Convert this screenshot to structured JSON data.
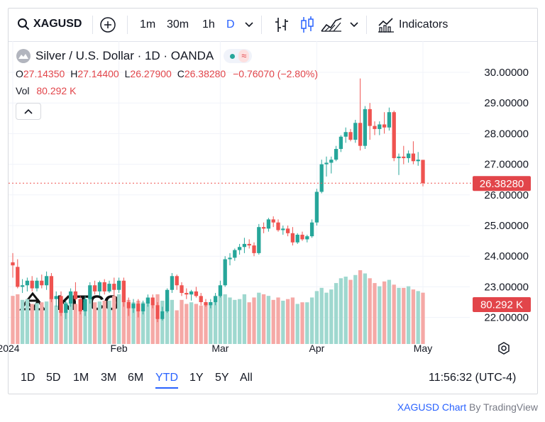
{
  "toolbar": {
    "symbol": "XAGUSD",
    "intervals": [
      "1m",
      "30m",
      "1h",
      "D"
    ],
    "active_interval": "D",
    "indicators_label": "Indicators"
  },
  "legend": {
    "title": "Silver / U.S. Dollar · 1D · OANDA",
    "open_key": "O",
    "open": "27.14350",
    "high_key": "H",
    "high": "27.14400",
    "low_key": "L",
    "low": "26.27900",
    "close_key": "C",
    "close": "26.38280",
    "change": "−0.76070 (−2.80%)",
    "vol_key": "Vol",
    "vol": "80.292 K"
  },
  "price_scale": {
    "ticks": [
      "30.00000",
      "29.00000",
      "28.00000",
      "27.00000",
      "26.00000",
      "25.00000",
      "24.00000",
      "23.00000",
      "22.00000"
    ],
    "last_price_label": "26.38280",
    "last_volume_label": "80.292 K"
  },
  "time_axis": {
    "labels": [
      "2024",
      "Feb",
      "Mar",
      "Apr",
      "May"
    ]
  },
  "bottom": {
    "ranges": [
      "1D",
      "5D",
      "1M",
      "3M",
      "6M",
      "YTD",
      "1Y",
      "5Y",
      "All"
    ],
    "active_range": "YTD",
    "clock": "11:56:32 (UTC-4)"
  },
  "watermark": "KITCO",
  "attribution": {
    "link": "XAGUSD Chart",
    "by": "By TradingView"
  },
  "colors": {
    "up": "#26a69a",
    "down": "#ef5350",
    "up_vol": "#9fd8cf",
    "down_vol": "#f5a9a6",
    "accent": "#2962ff"
  },
  "chart_data": {
    "type": "candlestick",
    "symbol": "XAGUSD",
    "interval": "1D",
    "ylim": [
      21.0,
      30.5
    ],
    "last_price": 26.3828,
    "candles": [
      {
        "d": "2024-01-02",
        "o": 23.8,
        "h": 24.1,
        "l": 23.3,
        "c": 23.7,
        "v": 60
      },
      {
        "d": "2024-01-03",
        "o": 23.65,
        "h": 23.9,
        "l": 22.95,
        "c": 23.0,
        "v": 62
      },
      {
        "d": "2024-01-04",
        "o": 23.0,
        "h": 23.25,
        "l": 22.8,
        "c": 23.05,
        "v": 55
      },
      {
        "d": "2024-01-05",
        "o": 23.05,
        "h": 23.3,
        "l": 22.85,
        "c": 23.2,
        "v": 56
      },
      {
        "d": "2024-01-08",
        "o": 23.2,
        "h": 23.35,
        "l": 22.85,
        "c": 22.95,
        "v": 50
      },
      {
        "d": "2024-01-09",
        "o": 22.95,
        "h": 23.3,
        "l": 22.85,
        "c": 23.2,
        "v": 51
      },
      {
        "d": "2024-01-10",
        "o": 23.2,
        "h": 23.4,
        "l": 22.95,
        "c": 23.05,
        "v": 52
      },
      {
        "d": "2024-01-11",
        "o": 23.05,
        "h": 23.5,
        "l": 22.9,
        "c": 23.35,
        "v": 53
      },
      {
        "d": "2024-01-12",
        "o": 23.35,
        "h": 23.45,
        "l": 22.5,
        "c": 22.6,
        "v": 58
      },
      {
        "d": "2024-01-15",
        "o": 22.6,
        "h": 22.85,
        "l": 22.35,
        "c": 22.7,
        "v": 48
      },
      {
        "d": "2024-01-16",
        "o": 22.7,
        "h": 22.85,
        "l": 22.05,
        "c": 22.15,
        "v": 56
      },
      {
        "d": "2024-01-17",
        "o": 22.15,
        "h": 22.55,
        "l": 21.95,
        "c": 22.45,
        "v": 52
      },
      {
        "d": "2024-01-18",
        "o": 22.45,
        "h": 22.95,
        "l": 22.35,
        "c": 22.85,
        "v": 50
      },
      {
        "d": "2024-01-19",
        "o": 22.85,
        "h": 23.15,
        "l": 22.55,
        "c": 22.6,
        "v": 50
      },
      {
        "d": "2024-01-22",
        "o": 22.6,
        "h": 22.7,
        "l": 22.1,
        "c": 22.2,
        "v": 55
      },
      {
        "d": "2024-01-23",
        "o": 22.2,
        "h": 22.7,
        "l": 22.05,
        "c": 22.6,
        "v": 52
      },
      {
        "d": "2024-01-24",
        "o": 22.6,
        "h": 23.15,
        "l": 22.45,
        "c": 23.05,
        "v": 56
      },
      {
        "d": "2024-01-25",
        "o": 23.05,
        "h": 23.2,
        "l": 22.75,
        "c": 22.85,
        "v": 52
      },
      {
        "d": "2024-01-26",
        "o": 22.85,
        "h": 23.2,
        "l": 22.7,
        "c": 23.15,
        "v": 53
      },
      {
        "d": "2024-01-29",
        "o": 23.15,
        "h": 23.25,
        "l": 22.75,
        "c": 22.85,
        "v": 54
      },
      {
        "d": "2024-01-30",
        "o": 22.85,
        "h": 23.2,
        "l": 22.8,
        "c": 23.1,
        "v": 54
      },
      {
        "d": "2024-01-31",
        "o": 23.1,
        "h": 23.3,
        "l": 22.7,
        "c": 22.9,
        "v": 60
      },
      {
        "d": "2024-02-01",
        "o": 22.9,
        "h": 23.3,
        "l": 22.8,
        "c": 23.2,
        "v": 62
      },
      {
        "d": "2024-02-02",
        "o": 23.2,
        "h": 23.3,
        "l": 22.35,
        "c": 22.5,
        "v": 60
      },
      {
        "d": "2024-02-05",
        "o": 22.5,
        "h": 22.65,
        "l": 22.05,
        "c": 22.3,
        "v": 55
      },
      {
        "d": "2024-02-06",
        "o": 22.3,
        "h": 22.6,
        "l": 22.15,
        "c": 22.45,
        "v": 52
      },
      {
        "d": "2024-02-07",
        "o": 22.45,
        "h": 22.6,
        "l": 22.0,
        "c": 22.2,
        "v": 54
      },
      {
        "d": "2024-02-08",
        "o": 22.2,
        "h": 22.55,
        "l": 22.1,
        "c": 22.45,
        "v": 52
      },
      {
        "d": "2024-02-09",
        "o": 22.45,
        "h": 22.75,
        "l": 22.35,
        "c": 22.65,
        "v": 50
      },
      {
        "d": "2024-02-12",
        "o": 22.65,
        "h": 22.75,
        "l": 22.3,
        "c": 22.4,
        "v": 50
      },
      {
        "d": "2024-02-13",
        "o": 22.4,
        "h": 22.5,
        "l": 21.85,
        "c": 21.95,
        "v": 62
      },
      {
        "d": "2024-02-14",
        "o": 21.95,
        "h": 22.35,
        "l": 21.9,
        "c": 22.2,
        "v": 54
      },
      {
        "d": "2024-02-15",
        "o": 22.2,
        "h": 22.95,
        "l": 22.15,
        "c": 22.9,
        "v": 58
      },
      {
        "d": "2024-02-16",
        "o": 22.9,
        "h": 23.45,
        "l": 22.8,
        "c": 23.35,
        "v": 55
      },
      {
        "d": "2024-02-19",
        "o": 23.35,
        "h": 23.4,
        "l": 22.9,
        "c": 23.05,
        "v": 42
      },
      {
        "d": "2024-02-20",
        "o": 23.05,
        "h": 23.15,
        "l": 22.7,
        "c": 22.8,
        "v": 55
      },
      {
        "d": "2024-02-21",
        "o": 22.8,
        "h": 22.95,
        "l": 22.6,
        "c": 22.75,
        "v": 50
      },
      {
        "d": "2024-02-22",
        "o": 22.75,
        "h": 22.9,
        "l": 22.55,
        "c": 22.85,
        "v": 52
      },
      {
        "d": "2024-02-23",
        "o": 22.85,
        "h": 23.0,
        "l": 22.65,
        "c": 22.7,
        "v": 50
      },
      {
        "d": "2024-02-26",
        "o": 22.7,
        "h": 22.8,
        "l": 22.4,
        "c": 22.5,
        "v": 48
      },
      {
        "d": "2024-02-27",
        "o": 22.5,
        "h": 22.6,
        "l": 22.35,
        "c": 22.4,
        "v": 50
      },
      {
        "d": "2024-02-28",
        "o": 22.4,
        "h": 22.6,
        "l": 22.3,
        "c": 22.5,
        "v": 52
      },
      {
        "d": "2024-02-29",
        "o": 22.5,
        "h": 22.8,
        "l": 22.4,
        "c": 22.7,
        "v": 55
      },
      {
        "d": "2024-03-01",
        "o": 22.7,
        "h": 23.2,
        "l": 22.65,
        "c": 23.05,
        "v": 60
      },
      {
        "d": "2024-03-04",
        "o": 23.05,
        "h": 24.0,
        "l": 23.0,
        "c": 23.9,
        "v": 62
      },
      {
        "d": "2024-03-05",
        "o": 23.9,
        "h": 24.1,
        "l": 23.7,
        "c": 23.95,
        "v": 58
      },
      {
        "d": "2024-03-06",
        "o": 23.95,
        "h": 24.25,
        "l": 23.85,
        "c": 24.2,
        "v": 55
      },
      {
        "d": "2024-03-07",
        "o": 24.2,
        "h": 24.4,
        "l": 24.05,
        "c": 24.3,
        "v": 56
      },
      {
        "d": "2024-03-08",
        "o": 24.3,
        "h": 24.6,
        "l": 24.1,
        "c": 24.4,
        "v": 62
      },
      {
        "d": "2024-03-11",
        "o": 24.4,
        "h": 24.55,
        "l": 24.25,
        "c": 24.35,
        "v": 52
      },
      {
        "d": "2024-03-12",
        "o": 24.35,
        "h": 24.45,
        "l": 24.0,
        "c": 24.1,
        "v": 58
      },
      {
        "d": "2024-03-13",
        "o": 24.1,
        "h": 25.05,
        "l": 24.05,
        "c": 24.95,
        "v": 64
      },
      {
        "d": "2024-03-14",
        "o": 24.95,
        "h": 25.1,
        "l": 24.75,
        "c": 24.9,
        "v": 62
      },
      {
        "d": "2024-03-15",
        "o": 24.9,
        "h": 25.25,
        "l": 24.8,
        "c": 25.2,
        "v": 60
      },
      {
        "d": "2024-03-18",
        "o": 25.2,
        "h": 25.3,
        "l": 24.95,
        "c": 25.1,
        "v": 55
      },
      {
        "d": "2024-03-19",
        "o": 25.1,
        "h": 25.2,
        "l": 24.8,
        "c": 24.85,
        "v": 58
      },
      {
        "d": "2024-03-20",
        "o": 24.85,
        "h": 25.0,
        "l": 24.7,
        "c": 24.9,
        "v": 54
      },
      {
        "d": "2024-03-21",
        "o": 24.9,
        "h": 25.0,
        "l": 24.65,
        "c": 24.75,
        "v": 56
      },
      {
        "d": "2024-03-22",
        "o": 24.75,
        "h": 24.95,
        "l": 24.35,
        "c": 24.45,
        "v": 58
      },
      {
        "d": "2024-03-25",
        "o": 24.45,
        "h": 24.75,
        "l": 24.4,
        "c": 24.7,
        "v": 50
      },
      {
        "d": "2024-03-26",
        "o": 24.7,
        "h": 24.8,
        "l": 24.5,
        "c": 24.55,
        "v": 52
      },
      {
        "d": "2024-03-27",
        "o": 24.55,
        "h": 24.7,
        "l": 24.45,
        "c": 24.65,
        "v": 52
      },
      {
        "d": "2024-03-28",
        "o": 24.65,
        "h": 25.2,
        "l": 24.6,
        "c": 25.1,
        "v": 58
      },
      {
        "d": "2024-04-01",
        "o": 25.1,
        "h": 26.2,
        "l": 25.0,
        "c": 26.1,
        "v": 66
      },
      {
        "d": "2024-04-02",
        "o": 26.1,
        "h": 27.15,
        "l": 26.05,
        "c": 27.0,
        "v": 70
      },
      {
        "d": "2024-04-03",
        "o": 27.0,
        "h": 27.25,
        "l": 26.6,
        "c": 27.05,
        "v": 64
      },
      {
        "d": "2024-04-04",
        "o": 27.05,
        "h": 27.25,
        "l": 26.7,
        "c": 27.15,
        "v": 68
      },
      {
        "d": "2024-04-05",
        "o": 27.15,
        "h": 27.6,
        "l": 27.1,
        "c": 27.5,
        "v": 76
      },
      {
        "d": "2024-04-08",
        "o": 27.5,
        "h": 27.95,
        "l": 27.4,
        "c": 27.9,
        "v": 82
      },
      {
        "d": "2024-04-09",
        "o": 27.9,
        "h": 28.2,
        "l": 27.7,
        "c": 28.05,
        "v": 84
      },
      {
        "d": "2024-04-10",
        "o": 28.05,
        "h": 28.15,
        "l": 27.75,
        "c": 27.8,
        "v": 80
      },
      {
        "d": "2024-04-11",
        "o": 27.8,
        "h": 28.45,
        "l": 27.7,
        "c": 28.35,
        "v": 86
      },
      {
        "d": "2024-04-12",
        "o": 28.35,
        "h": 29.8,
        "l": 27.45,
        "c": 27.6,
        "v": 92
      },
      {
        "d": "2024-04-15",
        "o": 27.6,
        "h": 28.9,
        "l": 27.5,
        "c": 28.8,
        "v": 88
      },
      {
        "d": "2024-04-16",
        "o": 28.8,
        "h": 29.0,
        "l": 27.8,
        "c": 28.25,
        "v": 82
      },
      {
        "d": "2024-04-17",
        "o": 28.25,
        "h": 28.4,
        "l": 27.95,
        "c": 28.15,
        "v": 76
      },
      {
        "d": "2024-04-18",
        "o": 28.15,
        "h": 28.4,
        "l": 27.95,
        "c": 28.3,
        "v": 72
      },
      {
        "d": "2024-04-19",
        "o": 28.3,
        "h": 28.7,
        "l": 28.0,
        "c": 28.2,
        "v": 78
      },
      {
        "d": "2024-04-22",
        "o": 28.2,
        "h": 28.85,
        "l": 28.1,
        "c": 28.7,
        "v": 80
      },
      {
        "d": "2024-04-23",
        "o": 28.7,
        "h": 28.75,
        "l": 27.1,
        "c": 27.2,
        "v": 74
      },
      {
        "d": "2024-04-24",
        "o": 27.2,
        "h": 27.35,
        "l": 26.65,
        "c": 27.25,
        "v": 70
      },
      {
        "d": "2024-04-25",
        "o": 27.25,
        "h": 27.6,
        "l": 27.0,
        "c": 27.2,
        "v": 70
      },
      {
        "d": "2024-04-26",
        "o": 27.2,
        "h": 27.45,
        "l": 27.05,
        "c": 27.35,
        "v": 72
      },
      {
        "d": "2024-04-29",
        "o": 27.35,
        "h": 27.75,
        "l": 27.0,
        "c": 27.1,
        "v": 68
      },
      {
        "d": "2024-04-30",
        "o": 27.1,
        "h": 27.4,
        "l": 26.95,
        "c": 27.15,
        "v": 66
      },
      {
        "d": "2024-05-01",
        "o": 27.1435,
        "h": 27.144,
        "l": 26.279,
        "c": 26.3828,
        "v": 64
      }
    ]
  }
}
